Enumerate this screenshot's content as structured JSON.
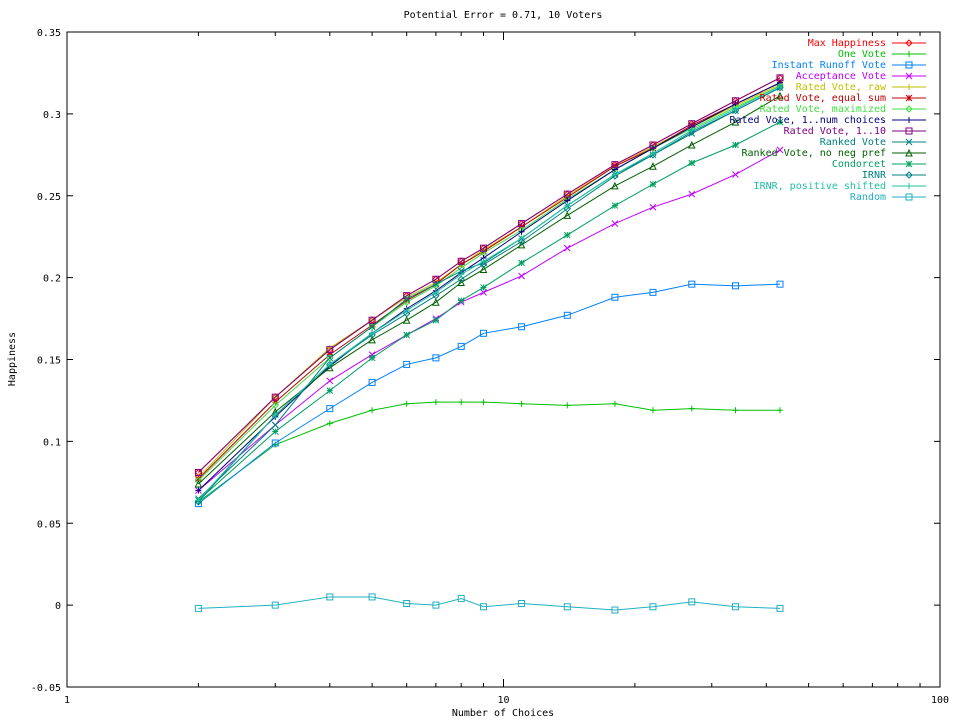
{
  "chart_data": {
    "type": "line",
    "title": "Potential Error = 0.71, 10 Voters",
    "xlabel": "Number of Choices",
    "ylabel": "Happiness",
    "x_scale": "log",
    "xlim": [
      1,
      100
    ],
    "ylim": [
      -0.05,
      0.35
    ],
    "x_ticks": [
      {
        "value": 1,
        "label": "1"
      },
      {
        "value": 10,
        "label": "10"
      },
      {
        "value": 100,
        "label": "100"
      }
    ],
    "y_ticks": [
      {
        "value": -0.05,
        "label": "-0.05"
      },
      {
        "value": 0,
        "label": "0"
      },
      {
        "value": 0.05,
        "label": "0.05"
      },
      {
        "value": 0.1,
        "label": "0.1"
      },
      {
        "value": 0.15,
        "label": "0.15"
      },
      {
        "value": 0.2,
        "label": "0.2"
      },
      {
        "value": 0.25,
        "label": "0.25"
      },
      {
        "value": 0.3,
        "label": "0.3"
      },
      {
        "value": 0.35,
        "label": "0.35"
      }
    ],
    "grid": false,
    "legend_position": "top-right",
    "x": [
      2,
      3,
      4,
      5,
      6,
      7,
      8,
      9,
      11,
      14,
      18,
      22,
      27,
      34,
      43
    ],
    "series": [
      {
        "name": "Max Happiness",
        "color": "#ff0000",
        "marker": "diamond",
        "values": [
          0.081,
          0.127,
          0.156,
          0.174,
          0.189,
          0.199,
          0.21,
          0.218,
          0.233,
          0.251,
          0.269,
          0.281,
          0.294,
          0.308,
          0.322
        ]
      },
      {
        "name": "One Vote",
        "color": "#00c000",
        "marker": "plus",
        "values": [
          0.063,
          0.098,
          0.111,
          0.119,
          0.123,
          0.124,
          0.124,
          0.124,
          0.123,
          0.122,
          0.123,
          0.119,
          0.12,
          0.119,
          0.119
        ]
      },
      {
        "name": "Instant Runoff Vote",
        "color": "#0080ff",
        "marker": "square",
        "values": [
          0.062,
          0.099,
          0.12,
          0.136,
          0.147,
          0.151,
          0.158,
          0.166,
          0.17,
          0.177,
          0.188,
          0.191,
          0.196,
          0.195,
          0.196
        ]
      },
      {
        "name": "Acceptance Vote",
        "color": "#c000ff",
        "marker": "x",
        "values": [
          0.07,
          0.11,
          0.137,
          0.153,
          0.165,
          0.175,
          0.185,
          0.191,
          0.201,
          0.218,
          0.233,
          0.243,
          0.251,
          0.263,
          0.278
        ]
      },
      {
        "name": "Rated Vote, raw",
        "color": "#c0c000",
        "marker": "plus",
        "values": [
          0.078,
          0.127,
          0.157,
          0.174,
          0.188,
          0.197,
          0.208,
          0.217,
          0.231,
          0.25,
          0.268,
          0.28,
          0.292,
          0.305,
          0.318
        ]
      },
      {
        "name": "Rated Vote, equal sum",
        "color": "#c00000",
        "marker": "star",
        "values": [
          0.077,
          0.124,
          0.153,
          0.171,
          0.186,
          0.196,
          0.208,
          0.216,
          0.231,
          0.249,
          0.268,
          0.279,
          0.293,
          0.306,
          0.319
        ]
      },
      {
        "name": "Rated Vote, maximized",
        "color": "#40e040",
        "marker": "diamond",
        "values": [
          0.076,
          0.122,
          0.151,
          0.17,
          0.185,
          0.195,
          0.206,
          0.215,
          0.229,
          0.248,
          0.266,
          0.279,
          0.291,
          0.304,
          0.317
        ]
      },
      {
        "name": "Rated Vote, 1..num choices",
        "color": "#000080",
        "marker": "plus",
        "values": [
          0.07,
          0.115,
          0.146,
          0.166,
          0.181,
          0.192,
          0.203,
          0.212,
          0.228,
          0.247,
          0.266,
          0.279,
          0.292,
          0.306,
          0.319
        ]
      },
      {
        "name": "Rated Vote, 1..10",
        "color": "#800080",
        "marker": "square",
        "values": [
          0.081,
          0.127,
          0.156,
          0.174,
          0.189,
          0.199,
          0.21,
          0.218,
          0.233,
          0.251,
          0.269,
          0.281,
          0.294,
          0.308,
          0.322
        ]
      },
      {
        "name": "Ranked Vote",
        "color": "#008080",
        "marker": "x",
        "values": [
          0.065,
          0.11,
          0.151,
          0.17,
          0.187,
          0.196,
          0.204,
          0.209,
          0.224,
          0.244,
          0.263,
          0.275,
          0.288,
          0.302,
          0.316
        ]
      },
      {
        "name": "Ranked Vote, no neg pref",
        "color": "#006000",
        "marker": "triangle",
        "values": [
          0.074,
          0.118,
          0.145,
          0.162,
          0.174,
          0.185,
          0.197,
          0.205,
          0.22,
          0.238,
          0.256,
          0.268,
          0.281,
          0.295,
          0.311
        ]
      },
      {
        "name": "Condorcet",
        "color": "#00a060",
        "marker": "star",
        "values": [
          0.064,
          0.106,
          0.131,
          0.151,
          0.165,
          0.174,
          0.186,
          0.194,
          0.209,
          0.226,
          0.244,
          0.257,
          0.27,
          0.281,
          0.295
        ]
      },
      {
        "name": "IRNR",
        "color": "#008080",
        "marker": "diamond",
        "values": [
          0.063,
          0.116,
          0.147,
          0.165,
          0.178,
          0.189,
          0.199,
          0.208,
          0.222,
          0.242,
          0.262,
          0.275,
          0.289,
          0.302,
          0.316
        ]
      },
      {
        "name": "IRNR, positive shifted",
        "color": "#20c0a0",
        "marker": "plus",
        "values": [
          0.064,
          0.116,
          0.147,
          0.166,
          0.18,
          0.191,
          0.202,
          0.21,
          0.224,
          0.244,
          0.263,
          0.276,
          0.29,
          0.303,
          0.317
        ]
      },
      {
        "name": "Random",
        "color": "#20b0c0",
        "marker": "square",
        "values": [
          -0.002,
          0.0,
          0.005,
          0.005,
          0.001,
          0.0,
          0.004,
          -0.001,
          0.001,
          -0.001,
          -0.003,
          -0.001,
          0.002,
          -0.001,
          -0.002
        ]
      }
    ]
  }
}
